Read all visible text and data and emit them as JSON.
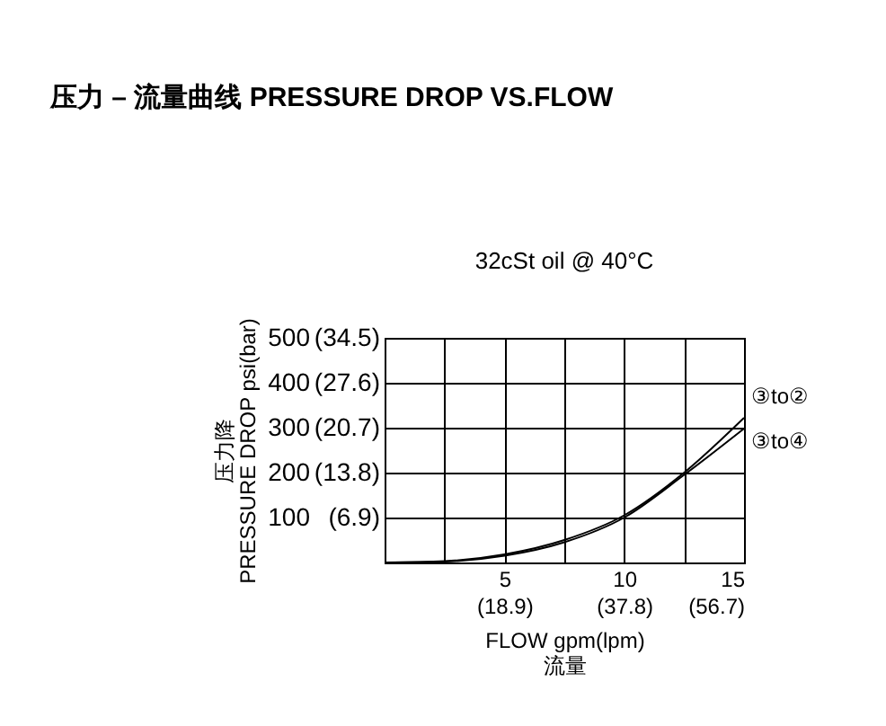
{
  "chart_data": {
    "type": "line",
    "title": "压力 – 流量曲线 PRESSURE DROP VS.FLOW",
    "subtitle": "32cSt oil @ 40°C",
    "xlabel": "FLOW gpm(lpm)\n流量",
    "ylabel": "压力降\nPRESSURE DROP psi(bar)",
    "x": [
      0,
      2.5,
      5,
      7.5,
      10,
      12.5,
      15
    ],
    "series": [
      {
        "name": "③to②",
        "color": "#000000",
        "values": [
          0,
          3,
          18,
          50,
          105,
          200,
          322
        ]
      },
      {
        "name": "③to④",
        "color": "#000000",
        "values": [
          0,
          2,
          15,
          45,
          100,
          195,
          298
        ]
      }
    ],
    "xlim": [
      0,
      15
    ],
    "xticks": [
      {
        "value": 0,
        "label": null
      },
      {
        "value": 2.5,
        "label": null
      },
      5,
      {
        "value": 7.5,
        "label": null
      },
      10,
      {
        "value": 12.5,
        "label": null
      },
      15
    ],
    "x2lim": [
      0,
      56.7
    ],
    "x2ticks": [
      {
        "value": 18.9,
        "label": "(18.9)"
      },
      {
        "value": 37.8,
        "label": "(37.8)"
      },
      {
        "value": 56.7,
        "label": "(56.7)"
      }
    ],
    "ylim": [
      0,
      500
    ],
    "yticks": [
      {
        "value": 0,
        "label": null
      },
      100,
      200,
      300,
      400,
      500
    ],
    "y2lim": [
      0,
      34.5
    ],
    "y2ticks": [
      {
        "value": 6.9,
        "label": "(6.9)"
      },
      {
        "value": 13.8,
        "label": "(13.8)"
      },
      {
        "value": 20.7,
        "label": "(20.7)"
      },
      {
        "value": 27.6,
        "label": "(27.6)"
      },
      {
        "value": 34.5,
        "label": "(34.5)"
      }
    ],
    "grid": true,
    "legend": false,
    "marker": "none",
    "line_style": "solid"
  }
}
